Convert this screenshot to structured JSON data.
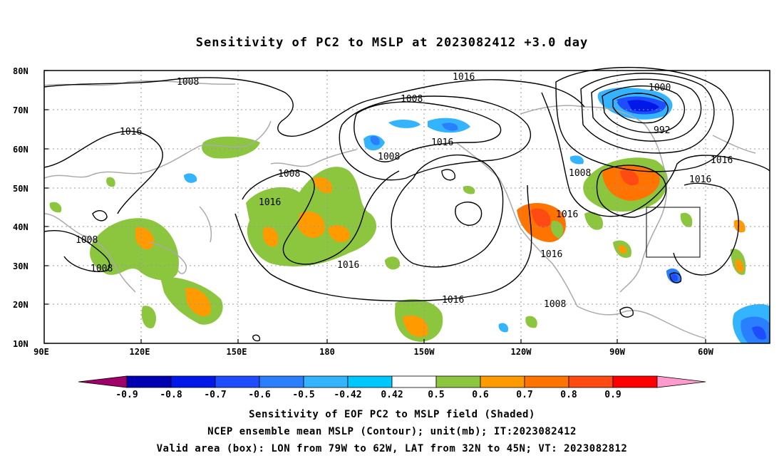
{
  "title": "Sensitivity of PC2 to MSLP at 2023082412 +3.0 day",
  "map": {
    "lat_labels": [
      "80N",
      "70N",
      "60N",
      "50N",
      "40N",
      "30N",
      "20N",
      "10N"
    ],
    "lon_labels": [
      "90E",
      "120E",
      "150E",
      "180",
      "150W",
      "120W",
      "90W",
      "60W"
    ],
    "box_region": {
      "lon_from": "79W",
      "lon_to": "62W",
      "lat_from": "32N",
      "lat_to": "45N"
    },
    "contour_labels": [
      "1008",
      "1016",
      "1016",
      "1008",
      "1008",
      "1016",
      "1016",
      "1008",
      "1008",
      "1016",
      "1016",
      "1008",
      "1000",
      "992",
      "1016",
      "1016",
      "1008",
      "1016",
      "1016",
      "1008"
    ]
  },
  "colorbar": {
    "labels": [
      "-0.9",
      "-0.8",
      "-0.7",
      "-0.6",
      "-0.5",
      "-0.42",
      "0.42",
      "0.5",
      "0.6",
      "0.7",
      "0.8",
      "0.9"
    ],
    "colors": [
      "#a0006a",
      "#0000b0",
      "#0018e8",
      "#1e4cff",
      "#2a7fff",
      "#34b4ff",
      "#00c8ff",
      "#ffffff",
      "#8cc63f",
      "#ff9a00",
      "#ff7300",
      "#ff4a14",
      "#ff0000",
      "#ff9acd"
    ]
  },
  "caption": {
    "line1": "Sensitivity of EOF PC2 to MSLP field (Shaded)",
    "line2": "NCEP ensemble mean MSLP (Contour); unit(mb); IT:2023082412",
    "line3": "Valid area (box): LON from 79W to 62W, LAT from 32N to 45N; VT: 2023082812"
  }
}
